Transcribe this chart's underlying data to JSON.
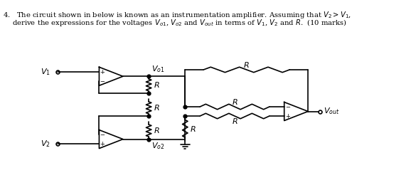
{
  "bg_color": "#ffffff",
  "line_color": "#000000",
  "fig_width": 5.85,
  "fig_height": 2.74,
  "dpi": 100
}
